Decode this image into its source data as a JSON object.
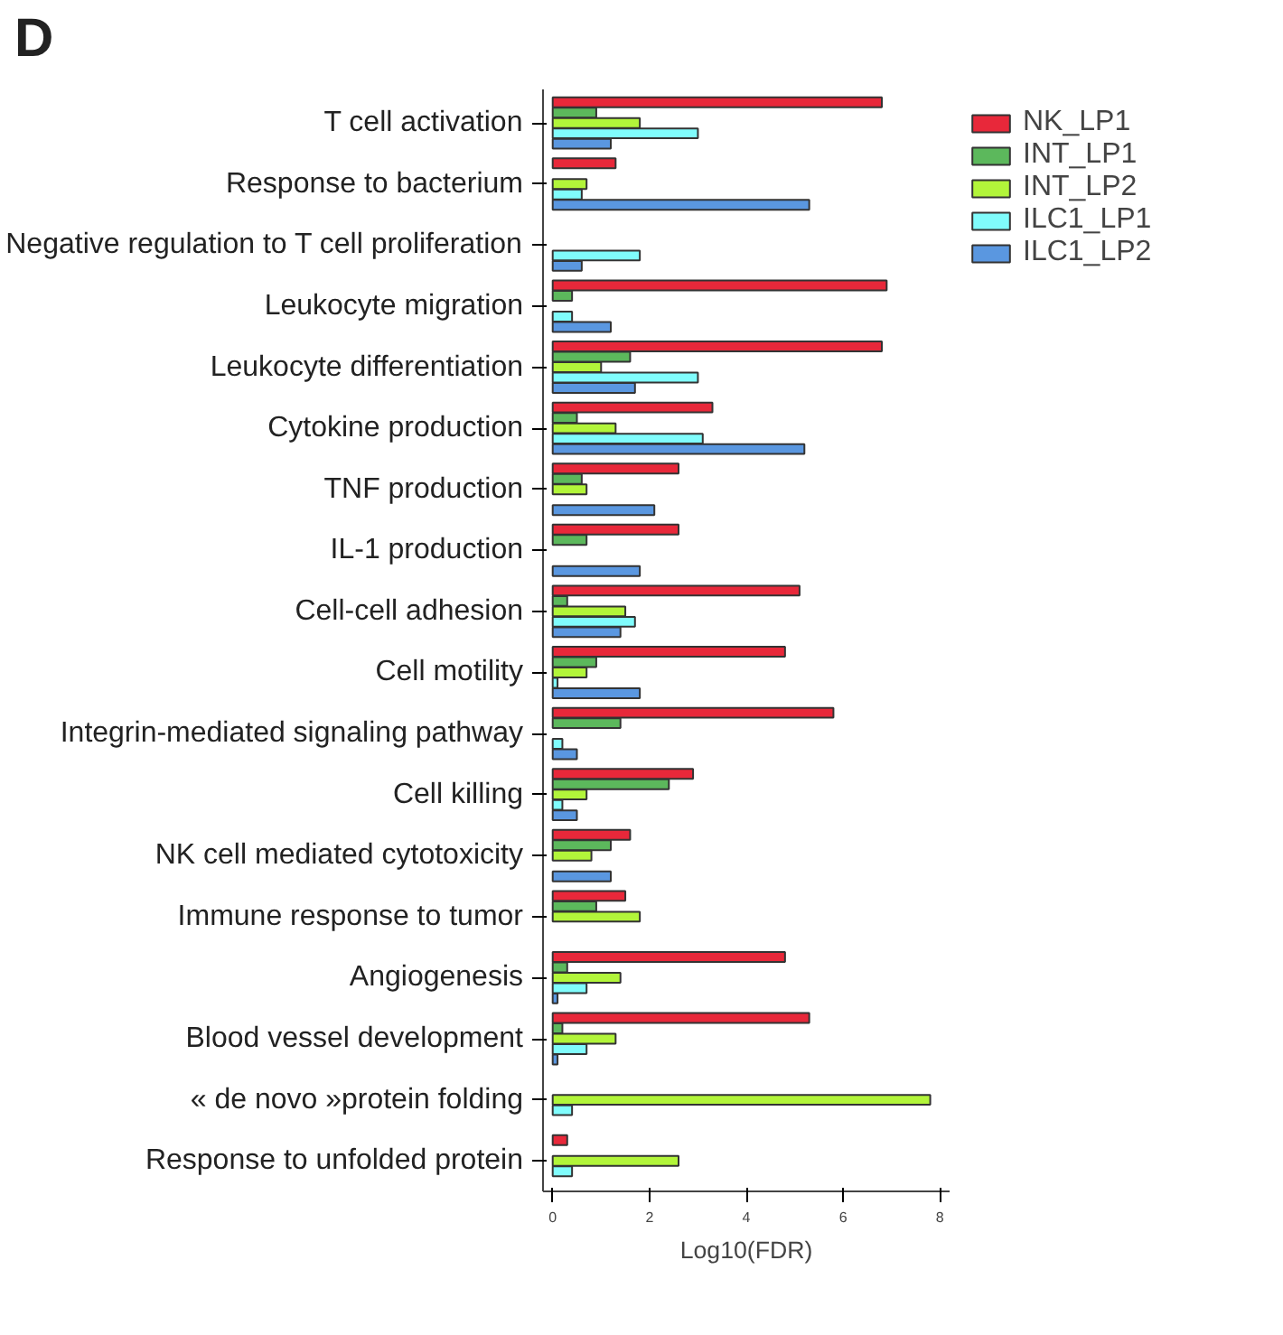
{
  "chart_data": {
    "type": "bar",
    "orientation": "horizontal",
    "title": "D",
    "xlabel": "Log10(FDR)",
    "categories": [
      "T cell activation",
      "Response to bacterium",
      "Negative regulation to T cell proliferation",
      "Leukocyte migration",
      "Leukocyte differentiation",
      "Cytokine production",
      "TNF production",
      "IL-1 production",
      "Cell-cell adhesion",
      "Cell motility",
      "Integrin-mediated signaling pathway",
      "Cell killing",
      "NK cell mediated cytotoxicity",
      "Immune response to tumor",
      "Angiogenesis",
      "Blood vessel development",
      "« de novo »protein folding",
      "Response to unfolded protein"
    ],
    "series": [
      {
        "name": "NK_LP1",
        "color": "#e8283a",
        "values": [
          6.8,
          1.3,
          null,
          6.9,
          6.8,
          3.3,
          2.6,
          2.6,
          5.1,
          4.8,
          5.8,
          2.9,
          1.6,
          1.5,
          4.8,
          5.3,
          null,
          0.3
        ]
      },
      {
        "name": "INT_LP1",
        "color": "#5cb85c",
        "values": [
          0.9,
          null,
          null,
          0.4,
          1.6,
          0.5,
          0.6,
          0.7,
          0.3,
          0.9,
          1.4,
          2.4,
          1.2,
          0.9,
          0.3,
          0.2,
          null,
          null
        ]
      },
      {
        "name": "INT_LP2",
        "color": "#b2f53a",
        "values": [
          1.8,
          0.7,
          null,
          null,
          1.0,
          1.3,
          0.7,
          null,
          1.5,
          0.7,
          null,
          0.7,
          0.8,
          1.8,
          1.4,
          1.3,
          7.8,
          2.6
        ]
      },
      {
        "name": "ILC1_LP1",
        "color": "#80fcfc",
        "values": [
          3.0,
          0.6,
          1.8,
          0.4,
          3.0,
          3.1,
          null,
          null,
          1.7,
          0.1,
          0.2,
          0.2,
          null,
          null,
          0.7,
          0.7,
          0.4,
          0.4
        ]
      },
      {
        "name": "ILC1_LP2",
        "color": "#5a97e0",
        "values": [
          1.2,
          5.3,
          0.6,
          1.2,
          1.7,
          5.2,
          2.1,
          1.8,
          1.4,
          1.8,
          0.5,
          0.5,
          1.2,
          null,
          0.1,
          0.1,
          null,
          null
        ]
      }
    ],
    "xlim": [
      -0.2,
      8.2
    ],
    "xticks": [
      0,
      2,
      4,
      6,
      8
    ],
    "legend": "top right"
  }
}
